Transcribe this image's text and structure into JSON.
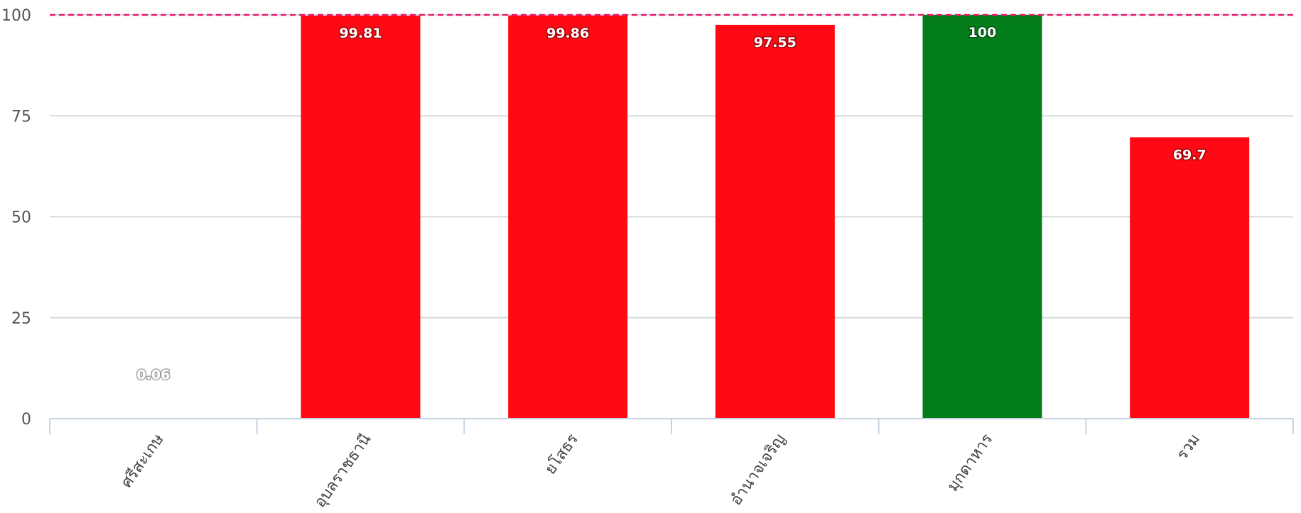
{
  "chart_data": {
    "type": "bar",
    "categories": [
      "ศรีสะเกษ",
      "อุบลราชธานี",
      "ยโสธร",
      "อำนาจเจริญ",
      "มุกดาหาร",
      "รวม"
    ],
    "values": [
      0.06,
      99.81,
      99.86,
      97.55,
      100,
      69.7
    ],
    "data_labels": [
      "0.06",
      "99.81",
      "99.86",
      "97.55",
      "100",
      "69.7"
    ],
    "bar_colors": [
      "#ff0a14",
      "#ff0a14",
      "#ff0a14",
      "#ff0a14",
      "#027d1a",
      "#ff0a14"
    ],
    "yticks": [
      "0",
      "25",
      "50",
      "75",
      "100"
    ],
    "ytick_values": [
      0,
      25,
      50,
      75,
      100
    ],
    "ylim": [
      0,
      100
    ],
    "target_line": 100,
    "target_line_color": "#e8196a",
    "grid": true,
    "grid_color": "#d6d9de",
    "axis_color": "#c5d3e2",
    "title": "",
    "xlabel": "",
    "ylabel": ""
  }
}
